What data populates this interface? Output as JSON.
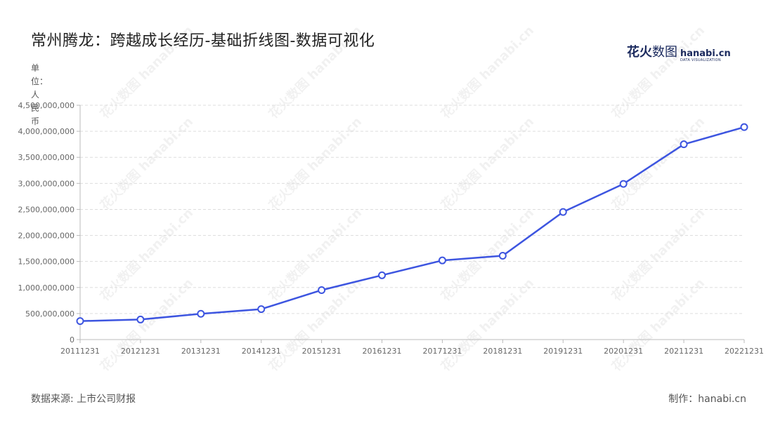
{
  "title": "常州腾龙：跨越成长经历-基础折线图-数据可视化",
  "logo": {
    "cn_bold": "花火",
    "cn_light": "数图",
    "en": "hanabi.cn",
    "sub": "DATA VISUALIZATION"
  },
  "unit_label": "单位：人民币",
  "source": "数据来源: 上市公司财报",
  "credit": "制作：hanabi.cn",
  "watermark": "花火数图 hanabi.cn",
  "colors": {
    "line": "#3d55e0",
    "grid": "#dddddd",
    "axis": "#bbbbbb"
  },
  "chart_data": {
    "type": "line",
    "title": "常州腾龙：跨越成长经历-基础折线图-数据可视化",
    "xlabel": "",
    "ylabel": "单位：人民币",
    "categories": [
      "20111231",
      "20121231",
      "20131231",
      "20141231",
      "20151231",
      "20161231",
      "20171231",
      "20181231",
      "20191231",
      "20201231",
      "20211231",
      "20221231"
    ],
    "series": [
      {
        "values": [
          355000000,
          385000000,
          495000000,
          585000000,
          950000000,
          1235000000,
          1520000000,
          1610000000,
          2450000000,
          2990000000,
          3750000000,
          4080000000
        ]
      }
    ],
    "ylim": [
      0,
      4500000000
    ],
    "yticks": [
      0,
      500000000,
      1000000000,
      1500000000,
      2000000000,
      2500000000,
      3000000000,
      3500000000,
      4000000000,
      4500000000
    ],
    "ytick_labels": [
      "0",
      "500,000,000",
      "1,000,000,000",
      "1,500,000,000",
      "2,000,000,000",
      "2,500,000,000",
      "3,000,000,000",
      "3,500,000,000",
      "4,000,000,000",
      "4,500,000,000"
    ],
    "grid": true,
    "legend": "none"
  }
}
